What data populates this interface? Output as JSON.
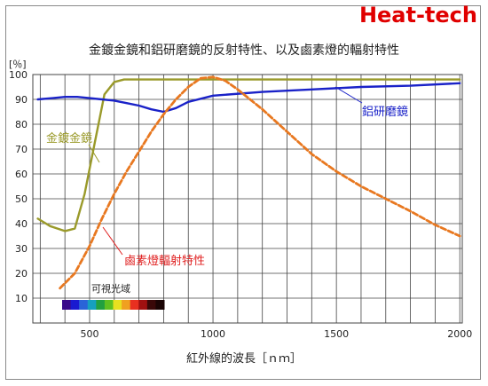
{
  "brand": "Heat-tech",
  "chart_data": {
    "type": "line",
    "title": "金鍍金鏡和鋁研磨鏡的反射特性、以及鹵素燈的輻射特性",
    "xlabel": "紅外線的波長［ｎｍ］",
    "ylabel": "[％]",
    "xlim": [
      270,
      2010
    ],
    "ylim": [
      0,
      100
    ],
    "x_ticks": [
      500,
      1000,
      1500,
      2000
    ],
    "y_ticks": [
      10,
      20,
      30,
      40,
      50,
      60,
      70,
      80,
      90,
      100
    ],
    "grid": true,
    "series": [
      {
        "name": "金鍍金鏡",
        "color": "#9a9a2a",
        "style": "solid",
        "x": [
          290,
          340,
          400,
          440,
          480,
          520,
          560,
          600,
          640,
          700,
          800,
          900,
          1000,
          1200,
          1400,
          1600,
          1800,
          2000
        ],
        "y": [
          42,
          39,
          37,
          38,
          52,
          72,
          92,
          97,
          98,
          98,
          98,
          98,
          98,
          98,
          98,
          98,
          98,
          98
        ]
      },
      {
        "name": "鋁研磨鏡",
        "color": "#1a22c8",
        "style": "solid",
        "x": [
          290,
          350,
          400,
          450,
          500,
          550,
          600,
          650,
          700,
          750,
          800,
          850,
          900,
          1000,
          1200,
          1400,
          1600,
          1800,
          2000
        ],
        "y": [
          90,
          90.5,
          91,
          91,
          90.5,
          90,
          89.5,
          88.5,
          87.5,
          86,
          85,
          86.5,
          89,
          91.5,
          93,
          94,
          95,
          95.5,
          96.5
        ]
      },
      {
        "name": "鹵素燈輻射特性",
        "color": "#e87820",
        "style": "dashed",
        "x": [
          380,
          440,
          500,
          550,
          600,
          650,
          700,
          750,
          800,
          850,
          900,
          950,
          1000,
          1050,
          1100,
          1200,
          1300,
          1400,
          1500,
          1600,
          1700,
          1800,
          1900,
          2000
        ],
        "y": [
          14,
          20,
          31,
          42,
          52,
          61,
          69,
          77,
          84,
          90,
          95,
          98.5,
          99,
          97.5,
          94,
          86,
          77,
          68,
          61,
          55,
          50,
          45,
          39.5,
          35
        ]
      }
    ],
    "annotations": [
      {
        "text": "鋁研磨鏡",
        "color": "#1a22c8"
      },
      {
        "text": "金鍍金鏡",
        "color": "#9a9a2a"
      },
      {
        "text": "鹵素燈輻射特性",
        "color": "#e02020"
      },
      {
        "text": "可視光域",
        "color": "#222222"
      }
    ],
    "visible_spectrum_colors": [
      "#3a0a8a",
      "#1a1ad0",
      "#2a64d8",
      "#16a0c0",
      "#22a040",
      "#60c020",
      "#e8e020",
      "#f0a020",
      "#e83020",
      "#a01010",
      "#3a0808",
      "#1a0404"
    ]
  }
}
